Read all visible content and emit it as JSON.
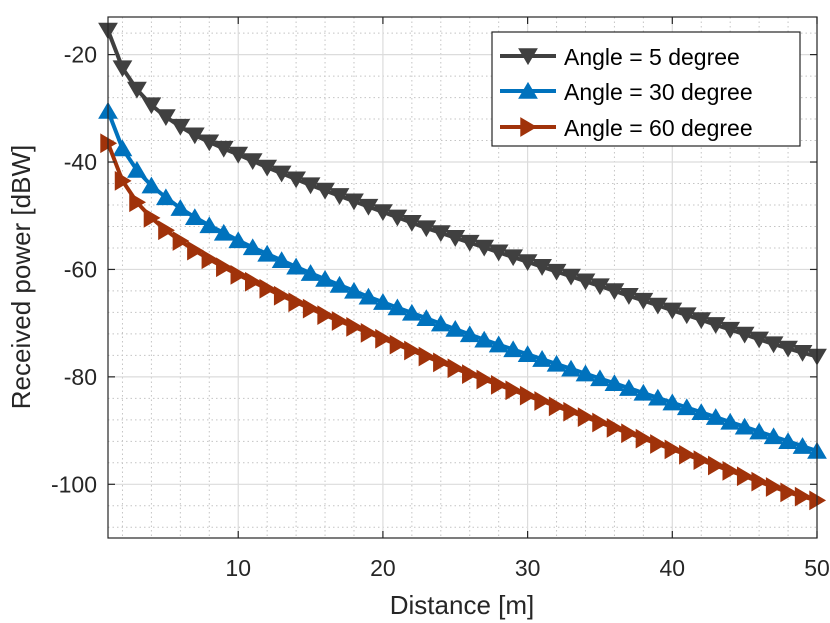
{
  "chart_data": {
    "type": "line",
    "title": "",
    "xlabel": "Distance [m]",
    "ylabel": "Received power [dBW]",
    "xlim": [
      1,
      50
    ],
    "ylim": [
      -110,
      -13
    ],
    "xticks": [
      10,
      20,
      30,
      40,
      50
    ],
    "yticks": [
      -20,
      -40,
      -60,
      -80,
      -100
    ],
    "xtick_labels": [
      "10",
      "20",
      "30",
      "40",
      "50"
    ],
    "ytick_labels": [
      "-20",
      "-40",
      "-60",
      "-80",
      "-100"
    ],
    "grid": true,
    "minor_grid": true,
    "legend_position": "top-right",
    "series": [
      {
        "name": "Angle = 5 degree",
        "color": "#404040",
        "marker": "triangle-down",
        "x": [
          1,
          2,
          3,
          4,
          5,
          6,
          7,
          8,
          9,
          10,
          11,
          12,
          13,
          14,
          15,
          16,
          17,
          18,
          19,
          20,
          21,
          22,
          23,
          24,
          25,
          26,
          27,
          28,
          29,
          30,
          31,
          32,
          33,
          34,
          35,
          36,
          37,
          38,
          39,
          40,
          41,
          42,
          43,
          44,
          45,
          46,
          47,
          48,
          49,
          50
        ],
        "y": [
          -15.5,
          -22.5,
          -26.5,
          -29.4,
          -31.6,
          -33.4,
          -35,
          -36.3,
          -37.5,
          -38.6,
          -39.8,
          -41,
          -42.1,
          -43.2,
          -44.3,
          -45.3,
          -46.3,
          -47.3,
          -48.3,
          -49.3,
          -50.3,
          -51.3,
          -52.3,
          -53.2,
          -54.1,
          -55,
          -55.9,
          -56.8,
          -57.7,
          -58.6,
          -59.5,
          -60.4,
          -61.3,
          -62.2,
          -63.1,
          -64,
          -64.9,
          -65.8,
          -66.7,
          -67.6,
          -68.5,
          -69.4,
          -70.3,
          -71.2,
          -72.1,
          -73,
          -73.9,
          -74.7,
          -75.5,
          -76.2
        ]
      },
      {
        "name": "Angle = 30 degree",
        "color": "#0072bd",
        "marker": "triangle-up",
        "x": [
          1,
          2,
          3,
          4,
          5,
          6,
          7,
          8,
          9,
          10,
          11,
          12,
          13,
          14,
          15,
          16,
          17,
          18,
          19,
          20,
          21,
          22,
          23,
          24,
          25,
          26,
          27,
          28,
          29,
          30,
          31,
          32,
          33,
          34,
          35,
          36,
          37,
          38,
          39,
          40,
          41,
          42,
          43,
          44,
          45,
          46,
          47,
          48,
          49,
          50
        ],
        "y": [
          -30.5,
          -37.5,
          -41.5,
          -44.4,
          -46.6,
          -48.6,
          -50.3,
          -51.8,
          -53.2,
          -54.6,
          -55.9,
          -57.1,
          -58.3,
          -59.5,
          -60.7,
          -61.8,
          -62.9,
          -64,
          -65.1,
          -66.1,
          -67.1,
          -68.1,
          -69.1,
          -70.1,
          -71.1,
          -72.1,
          -73.1,
          -74,
          -74.9,
          -75.8,
          -76.7,
          -77.6,
          -78.5,
          -79.4,
          -80.3,
          -81.2,
          -82.1,
          -83,
          -83.9,
          -84.8,
          -85.7,
          -86.6,
          -87.5,
          -88.4,
          -89.3,
          -90.2,
          -91.1,
          -92,
          -92.9,
          -93.8
        ]
      },
      {
        "name": "Angle = 60 degree",
        "color": "#a0320a",
        "marker": "triangle-right",
        "x": [
          1,
          2,
          3,
          4,
          5,
          6,
          7,
          8,
          9,
          10,
          11,
          12,
          13,
          14,
          15,
          16,
          17,
          18,
          19,
          20,
          21,
          22,
          23,
          24,
          25,
          26,
          27,
          28,
          29,
          30,
          31,
          32,
          33,
          34,
          35,
          36,
          37,
          38,
          39,
          40,
          41,
          42,
          43,
          44,
          45,
          46,
          47,
          48,
          49,
          50
        ],
        "y": [
          -36.5,
          -43.5,
          -47.5,
          -50.4,
          -52.7,
          -54.7,
          -56.5,
          -58.1,
          -59.6,
          -61,
          -62.3,
          -63.6,
          -64.9,
          -66.1,
          -67.3,
          -68.5,
          -69.6,
          -70.7,
          -71.8,
          -72.9,
          -74,
          -75.1,
          -76.2,
          -77.3,
          -78.4,
          -79.5,
          -80.5,
          -81.5,
          -82.5,
          -83.5,
          -84.5,
          -85.5,
          -86.5,
          -87.5,
          -88.5,
          -89.5,
          -90.5,
          -91.5,
          -92.5,
          -93.5,
          -94.5,
          -95.5,
          -96.5,
          -97.5,
          -98.5,
          -99.5,
          -100.5,
          -101.5,
          -102.3,
          -103
        ]
      }
    ]
  }
}
